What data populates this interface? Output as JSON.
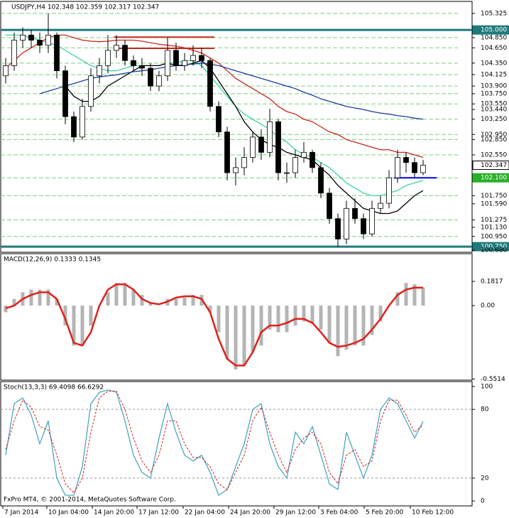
{
  "chart_data": [
    {
      "type": "candlestick",
      "title": "USDJPY,H4  102.348 102.359 102.317 102.347",
      "open": [
        104.1,
        104.3,
        104.8,
        104.9,
        104.8,
        104.7,
        104.9,
        104.2,
        103.3,
        102.9,
        103.5,
        104.1,
        104.3,
        104.6,
        104.7,
        104.4,
        104.3,
        104.25,
        103.9,
        104.1,
        104.6,
        104.3,
        104.4,
        104.5,
        104.4,
        103.5,
        103.0,
        102.2,
        102.3,
        102.5,
        102.9,
        102.6,
        103.2,
        102.2,
        102.2,
        102.5,
        102.6,
        102.3,
        101.8,
        101.3,
        100.9,
        101.5,
        101.3,
        101.0,
        101.5,
        101.6,
        102.1,
        102.5,
        102.4,
        102.2
      ],
      "high": [
        104.45,
        104.95,
        105.05,
        105.0,
        104.95,
        105.32,
        104.95,
        104.3,
        103.4,
        103.65,
        104.25,
        104.45,
        104.9,
        104.9,
        104.8,
        104.5,
        104.45,
        104.35,
        104.2,
        104.85,
        104.75,
        104.55,
        104.7,
        104.65,
        104.45,
        103.6,
        103.1,
        102.5,
        102.7,
        103.0,
        103.05,
        103.45,
        103.25,
        102.4,
        102.65,
        102.8,
        102.65,
        102.4,
        101.9,
        101.4,
        101.65,
        101.7,
        101.4,
        101.65,
        101.75,
        102.25,
        102.65,
        102.6,
        102.5,
        102.45
      ],
      "low": [
        103.95,
        104.2,
        104.65,
        104.65,
        104.55,
        104.55,
        104.05,
        103.15,
        102.8,
        102.85,
        103.4,
        103.95,
        104.15,
        104.45,
        104.3,
        104.2,
        104.1,
        103.8,
        103.8,
        104.0,
        104.2,
        104.2,
        104.3,
        104.25,
        103.4,
        102.9,
        102.05,
        101.95,
        102.15,
        102.4,
        102.45,
        102.5,
        102.05,
        102.0,
        102.1,
        102.4,
        102.2,
        101.7,
        101.2,
        100.75,
        100.8,
        101.2,
        100.9,
        100.95,
        101.4,
        101.5,
        102.0,
        102.2,
        102.1,
        102.15
      ],
      "close": [
        104.3,
        104.8,
        104.9,
        104.8,
        104.7,
        104.9,
        104.2,
        103.3,
        102.9,
        103.5,
        104.1,
        104.3,
        104.6,
        104.7,
        104.4,
        104.3,
        104.25,
        103.9,
        104.1,
        104.6,
        104.3,
        104.4,
        104.5,
        104.4,
        103.5,
        103.0,
        102.2,
        102.3,
        102.5,
        102.9,
        102.6,
        103.2,
        102.2,
        102.2,
        102.5,
        102.6,
        102.3,
        101.8,
        101.3,
        100.9,
        101.5,
        101.3,
        101.0,
        101.5,
        101.6,
        102.1,
        102.5,
        102.4,
        102.2,
        102.347
      ],
      "up_color": "#ffffff",
      "down_color": "#000000",
      "series": [
        {
          "color": "#3fd3a0",
          "values": [
            104.9,
            104.9,
            104.9,
            104.85,
            104.8,
            104.75,
            104.7,
            104.6,
            104.5,
            104.4,
            104.3,
            104.25,
            104.2,
            104.2,
            104.25,
            104.3,
            104.3,
            104.3,
            104.3,
            104.35,
            104.35,
            104.4,
            104.4,
            104.3,
            104.1,
            103.9,
            103.7,
            103.5,
            103.35,
            103.25,
            103.15,
            103.05,
            102.9,
            102.8,
            102.65,
            102.55,
            102.5,
            102.4,
            102.3,
            102.15,
            102.0,
            101.9,
            101.8,
            101.75,
            101.75,
            101.8,
            101.85,
            101.95,
            102.0,
            102.05
          ]
        },
        {
          "color": "#000000",
          "values": [
            null,
            null,
            null,
            null,
            null,
            null,
            null,
            103.9,
            103.7,
            103.6,
            103.6,
            103.7,
            103.9,
            104.0,
            104.1,
            104.2,
            104.3,
            104.3,
            104.3,
            104.35,
            104.3,
            104.3,
            104.35,
            104.4,
            104.25,
            104.0,
            103.75,
            103.5,
            103.2,
            103.0,
            102.85,
            102.75,
            102.7,
            102.6,
            102.55,
            102.5,
            102.45,
            102.3,
            102.15,
            101.95,
            101.8,
            101.65,
            101.5,
            101.45,
            101.4,
            101.4,
            101.45,
            101.6,
            101.75,
            101.85
          ]
        },
        {
          "color": "#c8281e",
          "values": [
            104.25,
            104.4,
            104.55,
            104.65,
            104.75,
            104.85,
            104.9,
            104.9,
            104.85,
            104.8,
            104.78,
            104.77,
            104.78,
            104.8,
            104.8,
            104.8,
            104.78,
            104.75,
            104.72,
            104.7,
            104.68,
            104.65,
            104.6,
            104.55,
            104.45,
            104.35,
            104.2,
            104.05,
            103.95,
            103.85,
            103.75,
            103.65,
            103.5,
            103.4,
            103.35,
            103.25,
            103.2,
            103.1,
            103.0,
            102.95,
            102.85,
            102.8,
            102.75,
            102.7,
            102.65,
            102.65,
            102.6,
            102.6,
            102.55,
            102.5
          ]
        },
        {
          "color": "#1c3c9c",
          "values": [
            null,
            null,
            null,
            null,
            103.75,
            103.8,
            103.85,
            103.9,
            103.95,
            104.0,
            104.05,
            104.08,
            104.1,
            104.12,
            104.15,
            104.18,
            104.2,
            104.22,
            104.25,
            104.28,
            104.3,
            104.32,
            104.33,
            104.35,
            104.33,
            104.3,
            104.25,
            104.2,
            104.15,
            104.1,
            104.05,
            104.0,
            103.95,
            103.9,
            103.85,
            103.78,
            103.72,
            103.65,
            103.6,
            103.55,
            103.5,
            103.47,
            103.44,
            103.4,
            103.37,
            103.35,
            103.32,
            103.3,
            103.27,
            103.25
          ]
        }
      ],
      "ylim": [
        100.64,
        105.56
      ],
      "yticks": [
        {
          "value": 105.325,
          "label": "105.325",
          "dashed": true
        },
        {
          "value": 105.0,
          "label": "105.000",
          "box": "#1f7a7a",
          "text_color": "#ffffff"
        },
        {
          "value": 104.85,
          "label": "104.850",
          "dashed": true
        },
        {
          "value": 104.65,
          "label": "104.650",
          "dashed": true
        },
        {
          "value": 104.35,
          "label": "104.350",
          "dashed": true
        },
        {
          "value": 104.125,
          "label": "104.125",
          "dashed": true
        },
        {
          "value": 103.9,
          "label": "103.900",
          "dashed": true
        },
        {
          "value": 103.75,
          "label": "103.750",
          "dashed": true
        },
        {
          "value": 103.55,
          "label": "103.550",
          "dashed": true
        },
        {
          "value": 103.44,
          "label": "103.440"
        },
        {
          "value": 103.25,
          "label": "103.250",
          "dashed": true
        },
        {
          "value": 102.95,
          "label": "102.950",
          "dashed": true
        },
        {
          "value": 102.85,
          "label": "102.850",
          "dashed": true
        },
        {
          "value": 102.55,
          "label": "102.550",
          "dashed": true
        },
        {
          "value": 102.347,
          "label": "102.347",
          "box": "#ffffff",
          "text_color": "#000000"
        },
        {
          "value": 102.1,
          "label": "102.100",
          "box": "#28b028",
          "text_color": "#ffffff",
          "dashed": true
        },
        {
          "value": 101.75,
          "label": "101.750",
          "dashed": true
        },
        {
          "value": 101.59,
          "label": "101.590"
        },
        {
          "value": 101.275,
          "label": "101.275",
          "dashed": true
        },
        {
          "value": 101.13,
          "label": "101.130"
        },
        {
          "value": 100.95,
          "label": "100.950",
          "dashed": true
        },
        {
          "value": 100.75,
          "label": "100.750",
          "box": "#1f7a7a",
          "text_color": "#ffffff"
        },
        {
          "value": 100.68,
          "label": "100.680"
        }
      ],
      "grid_color": "#7fcf7f",
      "hlines": [
        {
          "value": 105.0,
          "color": "#1f7a7a"
        },
        {
          "value": 100.75,
          "color": "#1f7a7a"
        }
      ],
      "segments": [
        {
          "value": 104.86,
          "from": 12.7,
          "to": 24.5,
          "color": "#c8281e"
        },
        {
          "value": 104.64,
          "from": 12.7,
          "to": 24.5,
          "color": "#c8281e"
        },
        {
          "value": 102.1,
          "from": 45.6,
          "to": 50.6,
          "color": "#0000ee"
        }
      ]
    },
    {
      "type": "macd",
      "title": "MACD(12,26,9) 0.1333 0.1345",
      "values": [
        -0.05,
        0.05,
        0.1,
        0.12,
        0.12,
        0.12,
        0.05,
        -0.15,
        -0.3,
        -0.3,
        -0.15,
        0.0,
        0.1,
        0.17,
        0.17,
        0.12,
        0.08,
        0.02,
        0.0,
        0.05,
        0.05,
        0.06,
        0.08,
        0.08,
        -0.05,
        -0.2,
        -0.4,
        -0.48,
        -0.45,
        -0.35,
        -0.3,
        -0.18,
        -0.2,
        -0.2,
        -0.15,
        -0.12,
        -0.13,
        -0.18,
        -0.28,
        -0.38,
        -0.33,
        -0.3,
        -0.3,
        -0.22,
        -0.12,
        0.0,
        0.1,
        0.17,
        0.16,
        0.1333
      ],
      "color": "#b4b4b4",
      "series": [
        {
          "color": "#e0201b",
          "values": [
            -0.02,
            0.0,
            0.05,
            0.08,
            0.1,
            0.1,
            0.05,
            -0.1,
            -0.28,
            -0.3,
            -0.2,
            0.0,
            0.12,
            0.16,
            0.16,
            0.12,
            0.05,
            0.02,
            0.01,
            0.03,
            0.06,
            0.07,
            0.07,
            0.05,
            -0.05,
            -0.25,
            -0.4,
            -0.45,
            -0.45,
            -0.35,
            -0.2,
            -0.15,
            -0.15,
            -0.13,
            -0.1,
            -0.1,
            -0.13,
            -0.2,
            -0.28,
            -0.31,
            -0.3,
            -0.28,
            -0.25,
            -0.18,
            -0.1,
            0.0,
            0.08,
            0.12,
            0.135,
            0.1345
          ]
        }
      ],
      "ylim": [
        -0.56,
        0.39
      ],
      "yticks": [
        0.1817,
        {
          "value": 0,
          "label": "0.00"
        },
        -0.5514
      ]
    },
    {
      "type": "line",
      "title": "Stoch(13,3,3) 69.4098 66.6292",
      "footer": "FxPro MT4, © 2001-2014, MetaQuotes Software Corp.",
      "series": [
        {
          "color": "#4aa8c0",
          "values": [
            40,
            85,
            90,
            75,
            50,
            70,
            20,
            5,
            5,
            30,
            85,
            95,
            97,
            95,
            70,
            40,
            25,
            20,
            55,
            85,
            60,
            40,
            35,
            40,
            25,
            5,
            10,
            30,
            50,
            80,
            85,
            50,
            30,
            20,
            60,
            50,
            65,
            40,
            15,
            10,
            60,
            40,
            20,
            40,
            80,
            90,
            85,
            70,
            55,
            69.4098
          ]
        },
        {
          "color": "#d02020",
          "dashed": true,
          "values": [
            45,
            70,
            88,
            82,
            65,
            62,
            40,
            15,
            7,
            20,
            60,
            90,
            96,
            96,
            80,
            55,
            35,
            25,
            40,
            70,
            70,
            50,
            38,
            38,
            30,
            15,
            10,
            25,
            40,
            70,
            82,
            60,
            40,
            25,
            45,
            55,
            60,
            50,
            25,
            15,
            40,
            45,
            30,
            35,
            70,
            88,
            88,
            75,
            60,
            66.6292
          ]
        }
      ],
      "ylim": [
        -4.3,
        104.3
      ],
      "yticks": [
        0,
        20,
        80,
        100
      ],
      "levels": [
        20,
        80
      ],
      "xticks": [
        {
          "value": -0.33,
          "label": "7 Jan 2014"
        },
        {
          "value": 4.83,
          "label": "10 Jan 04:00"
        },
        {
          "value": 10.17,
          "label": "14 Jan 20:00"
        },
        {
          "value": 15.42,
          "label": "17 Jan 12:00"
        },
        {
          "value": 20.83,
          "label": "22 Jan 04:00"
        },
        {
          "value": 26.17,
          "label": "24 Jan 20:00"
        },
        {
          "value": 31.5,
          "label": "29 Jan 12:00"
        },
        {
          "value": 36.75,
          "label": "3 Feb 04:00"
        },
        {
          "value": 42.08,
          "label": "5 Feb 20:00"
        },
        {
          "value": 47.5,
          "label": "10 Feb 12:00"
        }
      ]
    }
  ]
}
